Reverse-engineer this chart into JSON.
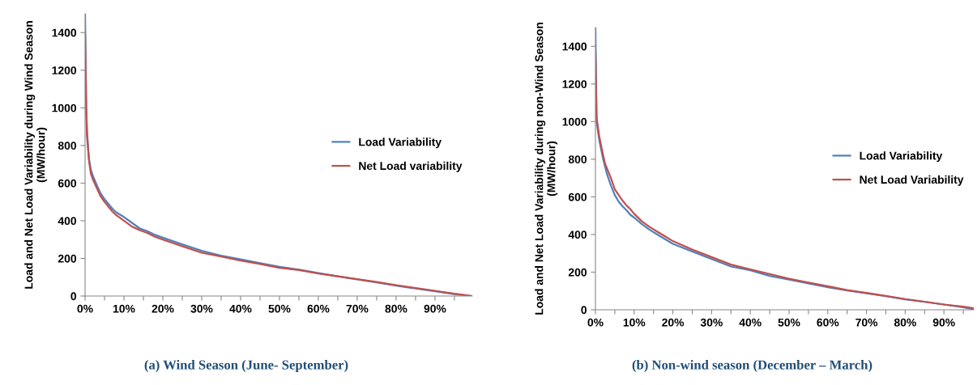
{
  "chart_data": [
    {
      "type": "line",
      "ylabel": "Load and Net Load Variability during Wind Season (MW/hour)",
      "annotations": [
        "(a) Wind Season (June- September)"
      ],
      "xlim": [
        0,
        99.6
      ],
      "xticks": [
        {
          "value": 0,
          "label": "0%"
        },
        {
          "value": 5,
          "label": null
        },
        {
          "value": 10,
          "label": "10%"
        },
        {
          "value": 15,
          "label": null
        },
        {
          "value": 20,
          "label": "20%"
        },
        {
          "value": 25,
          "label": null
        },
        {
          "value": 30,
          "label": "30%"
        },
        {
          "value": 35,
          "label": null
        },
        {
          "value": 40,
          "label": "40%"
        },
        {
          "value": 45,
          "label": null
        },
        {
          "value": 50,
          "label": "50%"
        },
        {
          "value": 55,
          "label": null
        },
        {
          "value": 60,
          "label": "60%"
        },
        {
          "value": 65,
          "label": null
        },
        {
          "value": 70,
          "label": "70%"
        },
        {
          "value": 75,
          "label": null
        },
        {
          "value": 80,
          "label": "80%"
        },
        {
          "value": 85,
          "label": null
        },
        {
          "value": 90,
          "label": "90%"
        },
        {
          "value": 95,
          "label": null
        }
      ],
      "ylim": [
        0,
        1500
      ],
      "yticks": [
        0,
        200,
        400,
        600,
        800,
        1000,
        1200,
        1400
      ],
      "grid": false,
      "legend": "right",
      "x": [
        0,
        0.3,
        0.5,
        1,
        1.5,
        2,
        3,
        4,
        5,
        6,
        7,
        8,
        10,
        12,
        14,
        16,
        18,
        20,
        25,
        30,
        35,
        40,
        45,
        50,
        55,
        60,
        65,
        70,
        75,
        80,
        85,
        90,
        95,
        99.6
      ],
      "series": [
        {
          "name": "Load Variability",
          "color": "#4f81bd",
          "values": [
            1500,
            1000,
            880,
            730,
            670,
            640,
            590,
            545,
            515,
            490,
            465,
            445,
            420,
            390,
            360,
            345,
            325,
            310,
            275,
            240,
            215,
            195,
            175,
            155,
            140,
            122,
            105,
            88,
            72,
            55,
            40,
            25,
            10,
            0
          ]
        },
        {
          "name": "Net Load variability",
          "color": "#c0504d",
          "values": [
            1400,
            1000,
            850,
            720,
            650,
            620,
            575,
            530,
            500,
            475,
            450,
            430,
            400,
            370,
            350,
            335,
            315,
            300,
            265,
            230,
            210,
            188,
            170,
            150,
            138,
            120,
            105,
            90,
            75,
            58,
            43,
            28,
            12,
            0
          ]
        }
      ]
    },
    {
      "type": "line",
      "ylabel": "Load and Net Load Variability during non-Wind Season (MW/hour)",
      "annotations": [
        "(b) Non-wind season (December – March)"
      ],
      "xlim": [
        0,
        97.7
      ],
      "xticks": [
        {
          "value": 0,
          "label": "0%"
        },
        {
          "value": 5,
          "label": null
        },
        {
          "value": 10,
          "label": "10%"
        },
        {
          "value": 15,
          "label": null
        },
        {
          "value": 20,
          "label": "20%"
        },
        {
          "value": 25,
          "label": null
        },
        {
          "value": 30,
          "label": "30%"
        },
        {
          "value": 35,
          "label": null
        },
        {
          "value": 40,
          "label": "40%"
        },
        {
          "value": 45,
          "label": null
        },
        {
          "value": 50,
          "label": "50%"
        },
        {
          "value": 55,
          "label": null
        },
        {
          "value": 60,
          "label": "60%"
        },
        {
          "value": 65,
          "label": null
        },
        {
          "value": 70,
          "label": "70%"
        },
        {
          "value": 75,
          "label": null
        },
        {
          "value": 80,
          "label": "80%"
        },
        {
          "value": 85,
          "label": null
        },
        {
          "value": 90,
          "label": "90%"
        },
        {
          "value": 95,
          "label": null
        }
      ],
      "ylim": [
        0,
        1500
      ],
      "yticks": [
        0,
        200,
        400,
        600,
        800,
        1000,
        1200,
        1400
      ],
      "grid": false,
      "legend": "right",
      "x": [
        0,
        0.3,
        1,
        2,
        2.5,
        3,
        4,
        5,
        6,
        7,
        8,
        9,
        10,
        12,
        14,
        16,
        18,
        20,
        25,
        30,
        35,
        40,
        45,
        50,
        55,
        60,
        65,
        70,
        75,
        80,
        85,
        90,
        95,
        97.7
      ],
      "series": [
        {
          "name": "Load Variability",
          "color": "#4f81bd",
          "values": [
            1500,
            1000,
            900,
            800,
            760,
            720,
            660,
            610,
            575,
            550,
            530,
            505,
            490,
            455,
            425,
            400,
            375,
            350,
            310,
            270,
            230,
            210,
            180,
            160,
            140,
            120,
            102,
            88,
            72,
            55,
            42,
            28,
            13,
            2
          ]
        },
        {
          "name": "Net Load Variability",
          "color": "#c0504d",
          "values": [
            1370,
            1020,
            920,
            820,
            775,
            750,
            700,
            640,
            610,
            580,
            555,
            535,
            510,
            470,
            440,
            415,
            390,
            365,
            320,
            280,
            240,
            215,
            190,
            165,
            145,
            125,
            105,
            90,
            74,
            57,
            43,
            28,
            17,
            8
          ]
        }
      ]
    }
  ]
}
